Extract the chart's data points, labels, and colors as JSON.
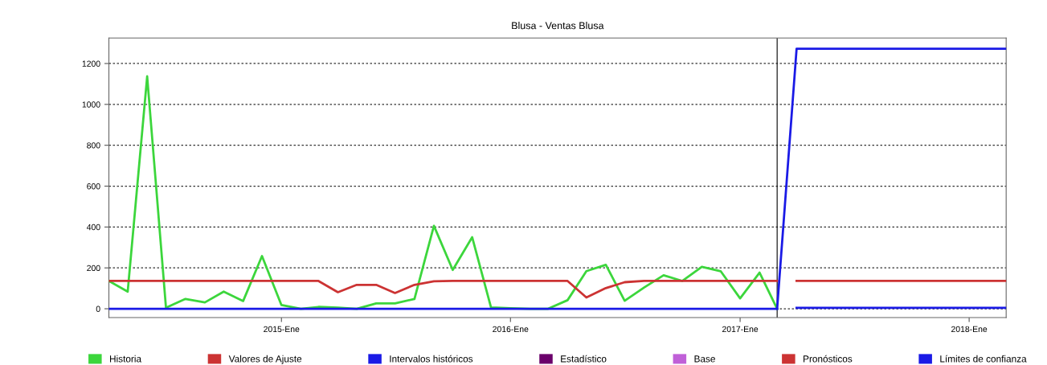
{
  "chart_data": {
    "type": "line",
    "title": "Blusa - Ventas Blusa",
    "xlim": [
      "2014-04",
      "2018-03"
    ],
    "ylim": [
      -43,
      1325
    ],
    "xticks": [
      {
        "value": "2015-01",
        "label": "2015-Ene"
      },
      {
        "value": "2016-01",
        "label": "2016-Ene"
      },
      {
        "value": "2017-01",
        "label": "2017-Ene"
      },
      {
        "value": "2018-01",
        "label": "2018-Ene"
      }
    ],
    "yticks": [
      0,
      200,
      400,
      600,
      800,
      1000,
      1200
    ],
    "grid": "y",
    "legend": "bottom",
    "marker": "none",
    "line_style": "solid",
    "ref_lines": [
      {
        "axis": "x",
        "value": "2017-03",
        "color": "#000000"
      }
    ],
    "series": [
      {
        "name": "Historia",
        "color": "#3cd63c",
        "x": [
          "2014-04",
          "2014-05",
          "2014-06",
          "2014-07",
          "2014-08",
          "2014-09",
          "2014-10",
          "2014-11",
          "2014-12",
          "2015-01",
          "2015-02",
          "2015-03",
          "2015-04",
          "2015-05",
          "2015-06",
          "2015-07",
          "2015-08",
          "2015-09",
          "2015-10",
          "2015-11",
          "2015-12",
          "2016-01",
          "2016-02",
          "2016-03",
          "2016-04",
          "2016-05",
          "2016-06",
          "2016-07",
          "2016-08",
          "2016-09",
          "2016-10",
          "2016-11",
          "2016-12",
          "2017-01",
          "2017-02",
          "2017-03"
        ],
        "values": [
          136,
          84,
          1137,
          5,
          48,
          31,
          84,
          38,
          258,
          18,
          0,
          9,
          6,
          0,
          26,
          26,
          48,
          406,
          190,
          350,
          7,
          3,
          0,
          0,
          42,
          184,
          215,
          39,
          104,
          164,
          136,
          205,
          184,
          51,
          177,
          0
        ]
      },
      {
        "name": "Valores de Ajuste",
        "color": "#cc3333",
        "x": [
          "2014-04",
          "2015-03",
          "2015-04",
          "2015-05",
          "2015-06",
          "2015-07",
          "2015-08",
          "2015-09",
          "2015-10",
          "2016-04",
          "2016-05",
          "2016-06",
          "2016-07",
          "2016-08",
          "2017-03"
        ],
        "values": [
          136,
          136,
          81,
          117,
          117,
          77,
          117,
          134,
          136,
          136,
          55,
          101,
          130,
          136,
          136
        ]
      },
      {
        "name": "Intervalos históricos",
        "color": "#1a1ae6",
        "x": [
          "2014-04",
          "2017-03"
        ],
        "values": [
          0,
          0
        ]
      },
      {
        "name": "Estadístico",
        "color": "#6b006b"
      },
      {
        "name": "Base",
        "color": "#c060d8"
      },
      {
        "name": "Pronósticos",
        "color": "#cc3333",
        "x": [
          "2017-04",
          "2018-03"
        ],
        "values": [
          136,
          136
        ]
      },
      {
        "name": "Límites de confianza",
        "color": "#1a1ae6",
        "x": [
          "2017-03",
          "2017-04",
          "2018-03"
        ],
        "values": [
          0,
          1272,
          1272
        ]
      },
      {
        "color": "#1a1ae6",
        "x": [
          "2017-04",
          "2018-03"
        ],
        "values": [
          5,
          5
        ]
      }
    ]
  }
}
